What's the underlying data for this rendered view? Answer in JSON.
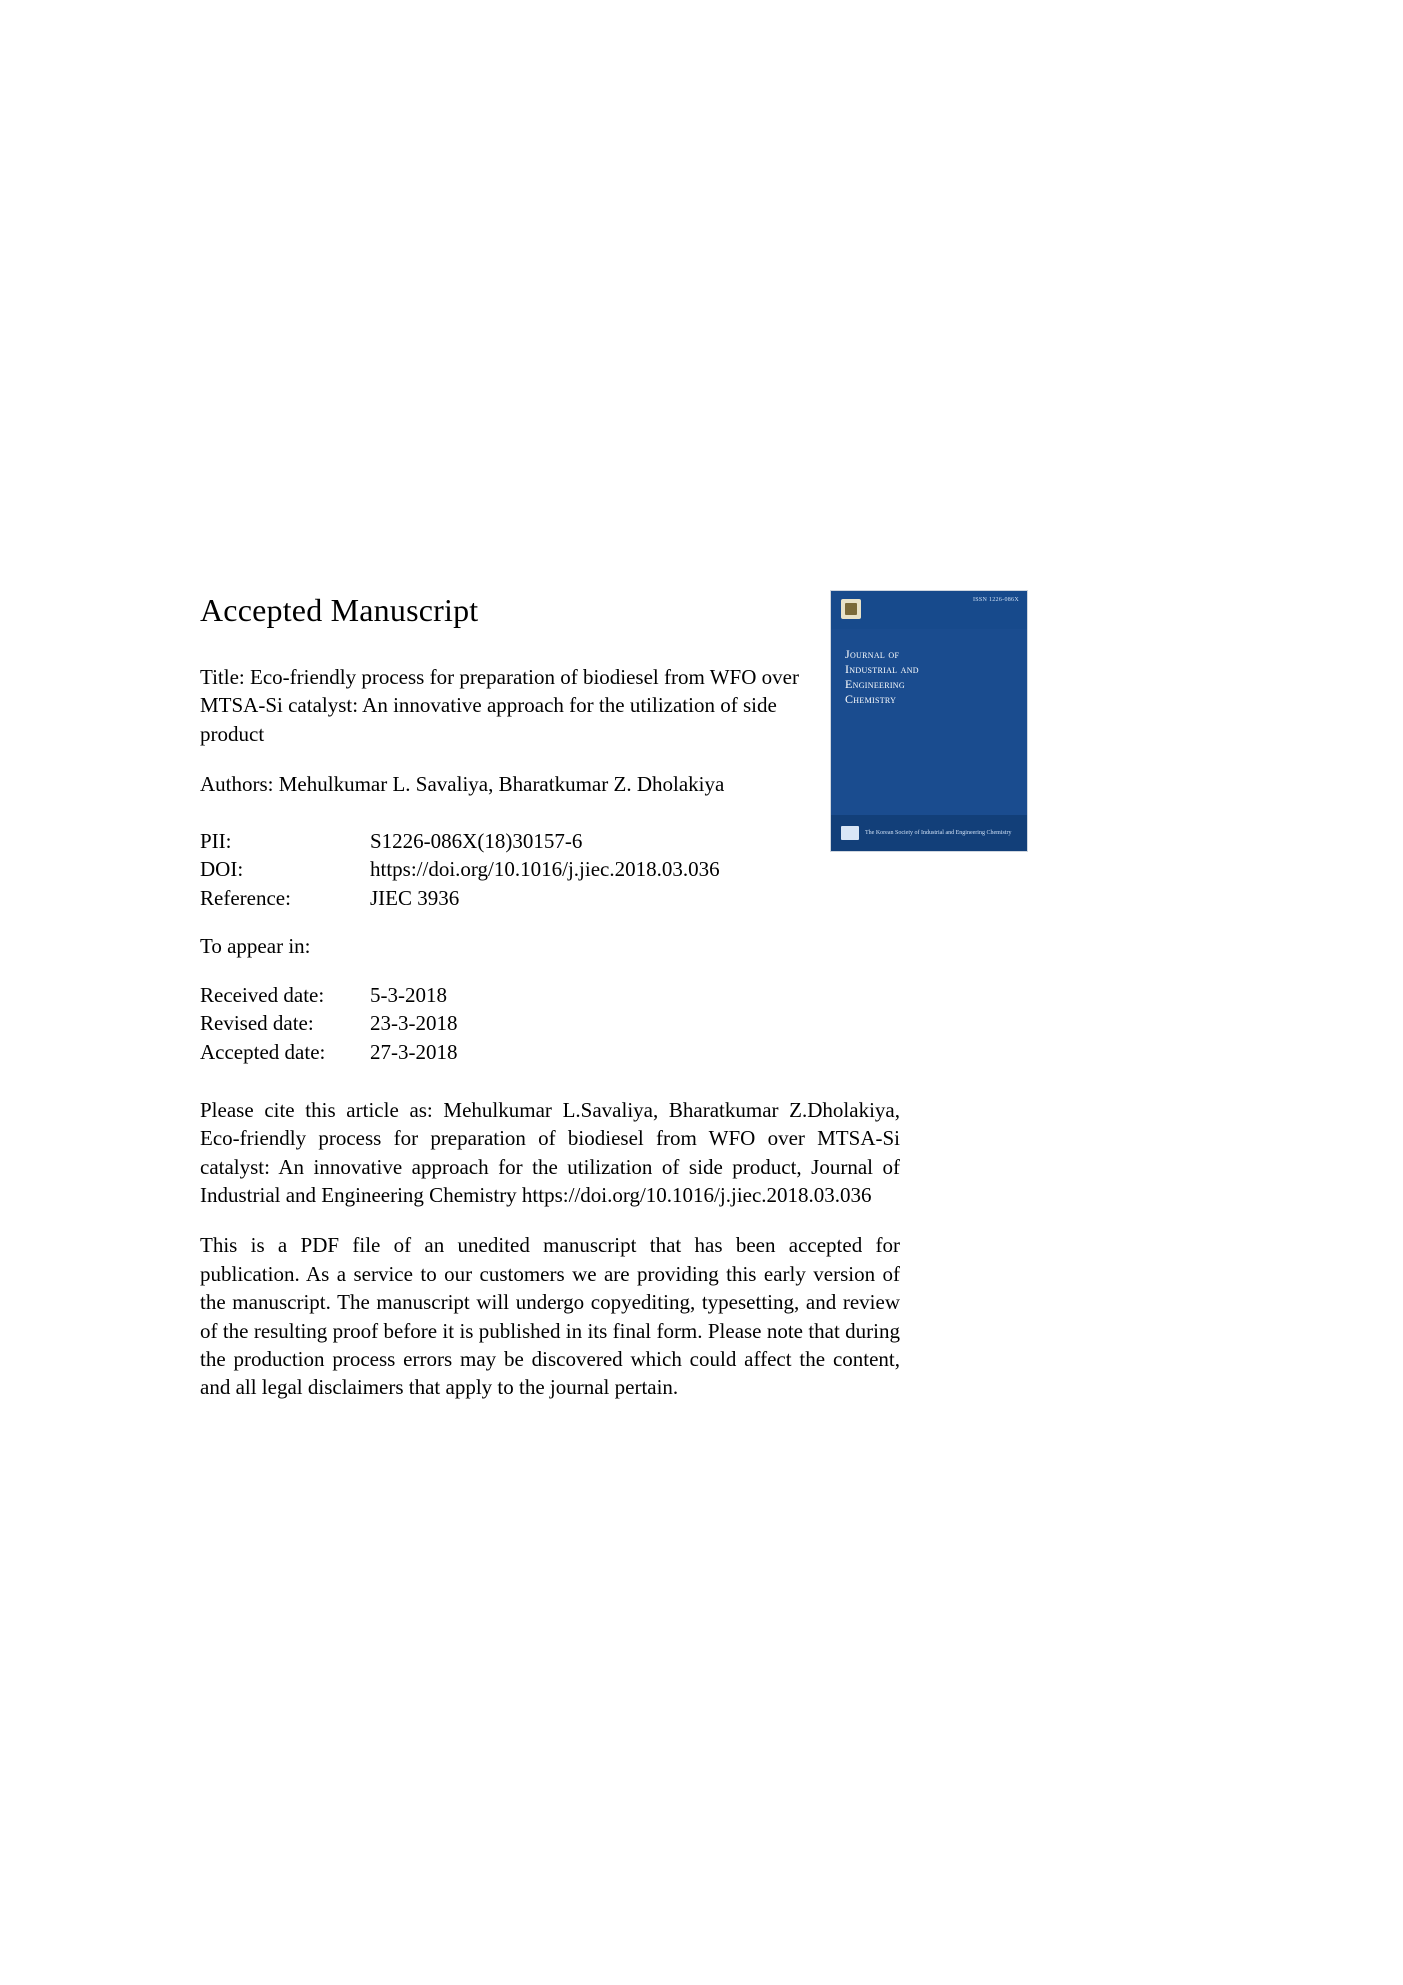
{
  "heading": "Accepted Manuscript",
  "title_line": "Title: Eco-friendly process for preparation of biodiesel from WFO over MTSA-Si catalyst: An innovative approach for the utilization of side product",
  "authors_line": "Authors: Mehulkumar L. Savaliya, Bharatkumar Z. Dholakiya",
  "meta": {
    "pii_label": "PII:",
    "pii_value": "S1226-086X(18)30157-6",
    "doi_label": "DOI:",
    "doi_value": "https://doi.org/10.1016/j.jiec.2018.03.036",
    "ref_label": "Reference:",
    "ref_value": "JIEC 3936"
  },
  "appear_line": "To appear in:",
  "dates": {
    "received_label": "Received date:",
    "received_value": "5-3-2018",
    "revised_label": "Revised date:",
    "revised_value": "23-3-2018",
    "accepted_label": "Accepted date:",
    "accepted_value": "27-3-2018"
  },
  "citation": "Please cite this article as: Mehulkumar L.Savaliya, Bharatkumar Z.Dholakiya, Eco-friendly process for preparation of biodiesel from WFO over MTSA-Si catalyst: An innovative approach for the utilization of side product, Journal of Industrial and Engineering Chemistry https://doi.org/10.1016/j.jiec.2018.03.036",
  "disclaimer": "This is a PDF file of an unedited manuscript that has been accepted for publication. As a service to our customers we are providing this early version of the manuscript. The manuscript will undergo copyediting, typesetting, and review of the resulting proof before it is published in its final form. Please note that during the production process errors may be discovered which could affect the content, and all legal disclaimers that apply to the journal pertain.",
  "cover": {
    "issn": "ISSN 1226-086X",
    "title_l1": "Journal of",
    "title_l2": "Industrial and",
    "title_l3": "Engineering",
    "title_l4": "Chemistry",
    "society": "The Korean Society of Industrial and Engineering Chemistry",
    "colors": {
      "bg": "#1a4c8f",
      "top": "#174a8c",
      "bottom": "#123f79",
      "text": "#ffffff",
      "faint": "#cfe0f5"
    }
  }
}
